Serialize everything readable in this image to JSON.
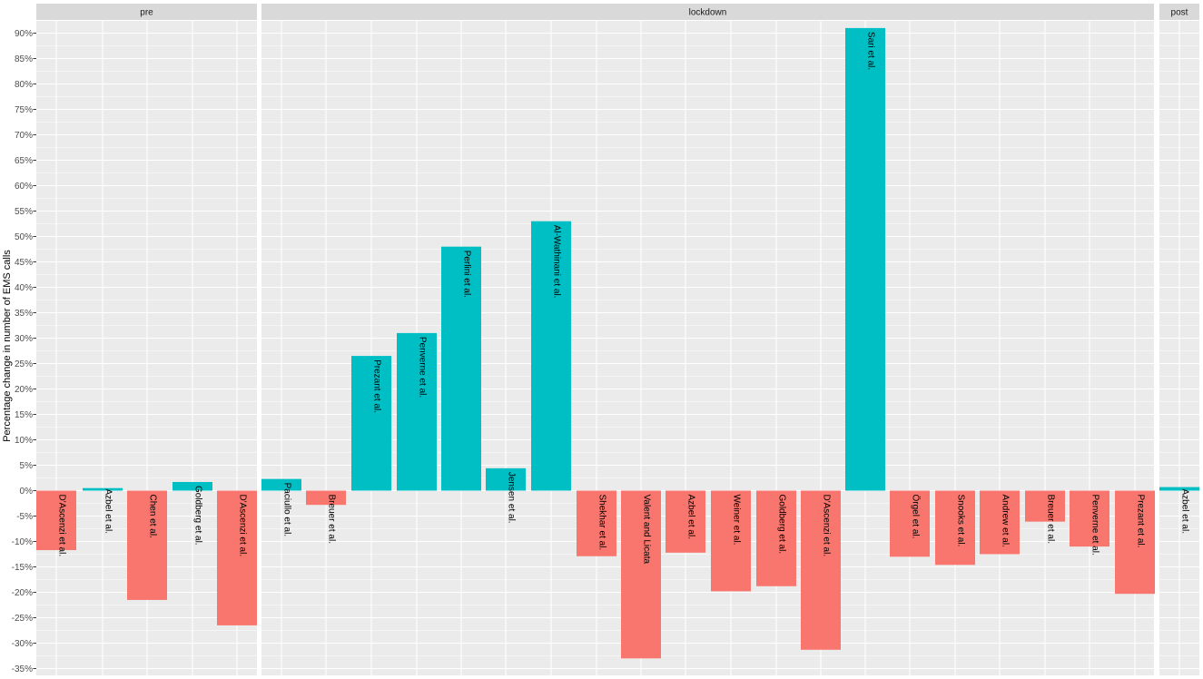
{
  "chart_data": {
    "type": "bar",
    "title": "",
    "xlabel": "",
    "ylabel": "Percentage change in number of EMS calls",
    "ylim": [
      -36,
      92
    ],
    "yticks": [
      -35,
      -30,
      -25,
      -20,
      -15,
      -10,
      -5,
      0,
      5,
      10,
      15,
      20,
      25,
      30,
      35,
      40,
      45,
      50,
      55,
      60,
      65,
      70,
      75,
      80,
      85,
      90
    ],
    "ytick_labels": [
      "-35%",
      "-30%",
      "-25%",
      "-20%",
      "-15%",
      "-10%",
      "-5%",
      "0%",
      "5%",
      "10%",
      "15%",
      "20%",
      "25%",
      "30%",
      "35%",
      "40%",
      "45%",
      "50%",
      "55%",
      "60%",
      "65%",
      "70%",
      "75%",
      "80%",
      "85%",
      "90%"
    ],
    "grid": true,
    "legend": "none",
    "colors": {
      "positive": "#00BFC4",
      "negative": "#F8766D",
      "panel": "#EBEBEB",
      "strip": "#D9D9D9",
      "grid": "#FFFFFF"
    },
    "facets": [
      {
        "name": "pre",
        "bars": [
          {
            "label": "D'Ascenzi et al.",
            "value": -11.7
          },
          {
            "label": "Azbel et al.",
            "value": 0.5
          },
          {
            "label": "Chen et al.",
            "value": -21.5
          },
          {
            "label": "Goldberg et al.",
            "value": 1.7
          },
          {
            "label": "D'Ascenzi et al.",
            "value": -26.5
          }
        ]
      },
      {
        "name": "lockdown",
        "bars": [
          {
            "label": "Paciullo et al.",
            "value": 2.3
          },
          {
            "label": "Breuer et al.",
            "value": -2.8
          },
          {
            "label": "Prezant et al.",
            "value": 26.5
          },
          {
            "label": "Penverne et al.",
            "value": 31.0
          },
          {
            "label": "Perlini et al.",
            "value": 48.0
          },
          {
            "label": "Jensen et al.",
            "value": 4.4
          },
          {
            "label": "Al-Wathinani et al.",
            "value": 53.0
          },
          {
            "label": "Shekhar et al.",
            "value": -12.9
          },
          {
            "label": "Valent and Licata",
            "value": -33.0
          },
          {
            "label": "Azbel et al.",
            "value": -12.2
          },
          {
            "label": "Weiner et al.",
            "value": -19.8
          },
          {
            "label": "Goldberg et al.",
            "value": -18.8
          },
          {
            "label": "D'Ascenzi et al.",
            "value": -31.3
          },
          {
            "label": "Sari et al.",
            "value": 91.0
          },
          {
            "label": "Örgel et al.",
            "value": -13.0
          },
          {
            "label": "Snooks et al.",
            "value": -14.6
          },
          {
            "label": "Andrew et al.",
            "value": -12.5
          },
          {
            "label": "Breuer et al.",
            "value": -6.1
          },
          {
            "label": "Penverne et al.",
            "value": -11.0
          },
          {
            "label": "Prezant et al.",
            "value": -20.3
          }
        ]
      },
      {
        "name": "post",
        "bars": [
          {
            "label": "Azbel et al.",
            "value": 0.7
          }
        ]
      }
    ]
  }
}
